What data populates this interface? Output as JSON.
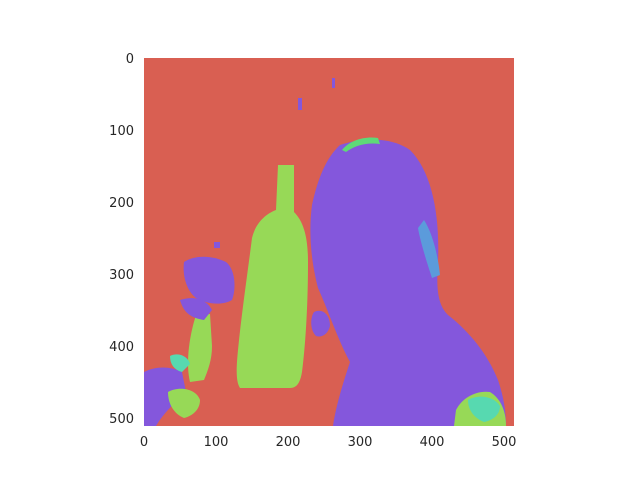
{
  "figure": {
    "type": "segmentation-mask",
    "x_axis": {
      "ticks": [
        "0",
        "100",
        "200",
        "300",
        "400",
        "500"
      ],
      "range": [
        0,
        512
      ]
    },
    "y_axis": {
      "ticks": [
        "0",
        "100",
        "200",
        "300",
        "400",
        "500"
      ],
      "range": [
        0,
        512
      ]
    },
    "colors": {
      "background": "#d95f52",
      "person": "#8457dc",
      "bottle": "#97d957",
      "accent_blue": "#5b9bdb",
      "accent_cyan": "#57d9b0",
      "accent_green": "#5ed978"
    }
  }
}
